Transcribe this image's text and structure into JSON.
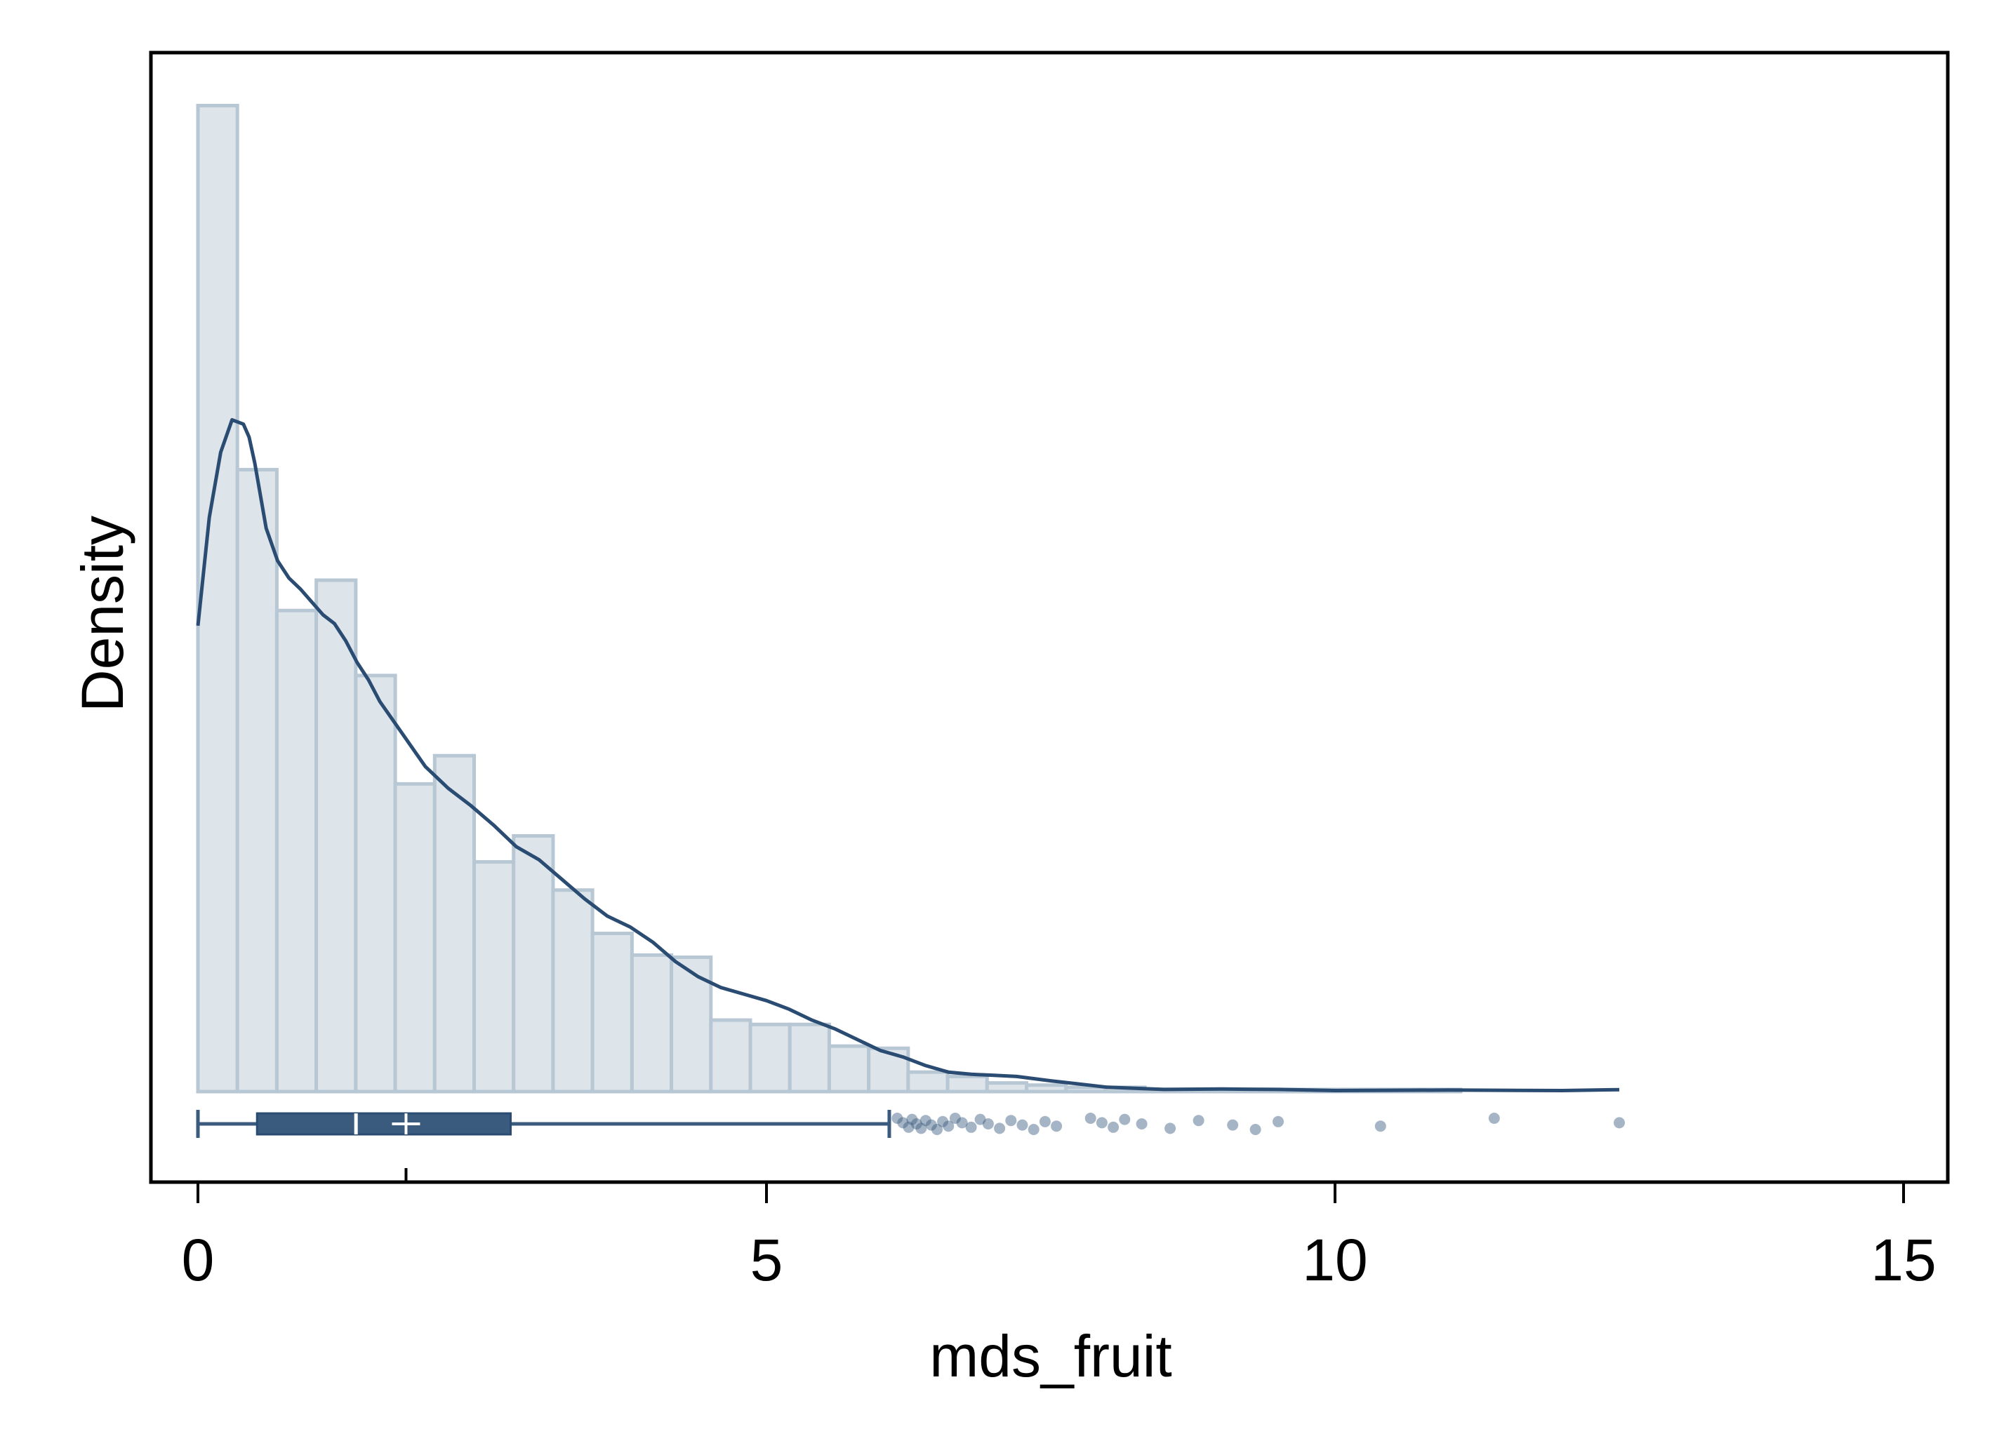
{
  "chart_data": {
    "type": "histogram",
    "title": "",
    "xlabel": "mds_fruit",
    "ylabel": "Density",
    "xlim": [
      -0.4,
      15.4
    ],
    "xticks": [
      0,
      5,
      10,
      15
    ],
    "xtick_labels": [
      "0",
      "5",
      "10",
      "15"
    ],
    "ylim": [
      0,
      0.5
    ],
    "grid": false,
    "histogram": {
      "bin_width": 0.347,
      "bin_start": 0.0,
      "density": [
        0.455,
        0.287,
        0.222,
        0.236,
        0.192,
        0.142,
        0.155,
        0.106,
        0.118,
        0.093,
        0.073,
        0.063,
        0.062,
        0.033,
        0.031,
        0.031,
        0.021,
        0.02,
        0.009,
        0.007,
        0.004,
        0.003,
        0.002,
        0.002,
        0.001,
        0.001,
        0.001,
        0.001,
        0.001,
        0.001,
        0.001,
        0.001
      ]
    },
    "kde": {
      "x": [
        0.0,
        0.1,
        0.2,
        0.3,
        0.4,
        0.45,
        0.5,
        0.6,
        0.7,
        0.8,
        0.9,
        1.0,
        1.1,
        1.2,
        1.3,
        1.4,
        1.5,
        1.6,
        1.8,
        2.0,
        2.2,
        2.4,
        2.6,
        2.8,
        3.0,
        3.2,
        3.4,
        3.6,
        3.8,
        4.0,
        4.2,
        4.4,
        4.6,
        4.8,
        5.0,
        5.2,
        5.4,
        5.6,
        5.8,
        6.0,
        6.2,
        6.4,
        6.6,
        6.8,
        7.0,
        7.2,
        7.5,
        8.0,
        8.5,
        9.0,
        9.5,
        10.0,
        11.0,
        12.0,
        12.5
      ],
      "y": [
        0.215,
        0.265,
        0.295,
        0.31,
        0.308,
        0.302,
        0.29,
        0.26,
        0.245,
        0.237,
        0.232,
        0.226,
        0.22,
        0.216,
        0.208,
        0.198,
        0.19,
        0.18,
        0.165,
        0.15,
        0.14,
        0.132,
        0.123,
        0.113,
        0.107,
        0.098,
        0.089,
        0.081,
        0.076,
        0.069,
        0.06,
        0.053,
        0.048,
        0.045,
        0.042,
        0.038,
        0.033,
        0.029,
        0.024,
        0.019,
        0.016,
        0.012,
        0.009,
        0.008,
        0.0075,
        0.007,
        0.005,
        0.002,
        0.001,
        0.0012,
        0.001,
        0.0005,
        0.0007,
        0.0005,
        0.0009
      ]
    },
    "boxplot": {
      "whisker_low": 0.0,
      "q1": 0.52,
      "median": 1.39,
      "mean": 1.83,
      "q3": 2.75,
      "whisker_high": 6.08,
      "outliers": [
        6.15,
        6.2,
        6.25,
        6.28,
        6.32,
        6.36,
        6.4,
        6.45,
        6.5,
        6.55,
        6.6,
        6.66,
        6.72,
        6.8,
        6.88,
        6.95,
        7.05,
        7.15,
        7.25,
        7.35,
        7.45,
        7.55,
        7.85,
        7.95,
        8.05,
        8.15,
        8.3,
        8.55,
        8.8,
        9.1,
        9.3,
        9.5,
        10.4,
        11.4,
        12.5
      ]
    },
    "colors": {
      "bar_fill": "#dde4ea",
      "bar_edge": "#b8c7d4",
      "line": "#2b4c72",
      "box": "#3a5a7e",
      "outlier": "#3a5a7e"
    }
  }
}
